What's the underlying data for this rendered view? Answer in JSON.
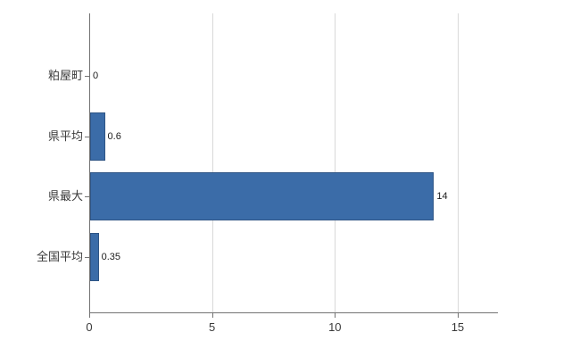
{
  "chart_data": {
    "type": "bar",
    "orientation": "horizontal",
    "title": "",
    "xlabel": "",
    "ylabel": "",
    "categories": [
      "粕屋町",
      "県平均",
      "県最大",
      "全国平均"
    ],
    "values": [
      0,
      0.6,
      14,
      0.35
    ],
    "data_labels": [
      "0",
      "0.6",
      "14",
      "0.35"
    ],
    "xlim": [
      0,
      16.6
    ],
    "xticks": [
      0,
      5,
      10,
      15
    ],
    "xtick_labels": [
      "0",
      "5",
      "10",
      "15"
    ],
    "grid": true,
    "legend": "none",
    "bar_color": "#3b6ca8",
    "bar_border_color": "#2f5585",
    "grid_color": "#d9d9d9",
    "axis_color": "#737373",
    "background": "#ffffff"
  }
}
